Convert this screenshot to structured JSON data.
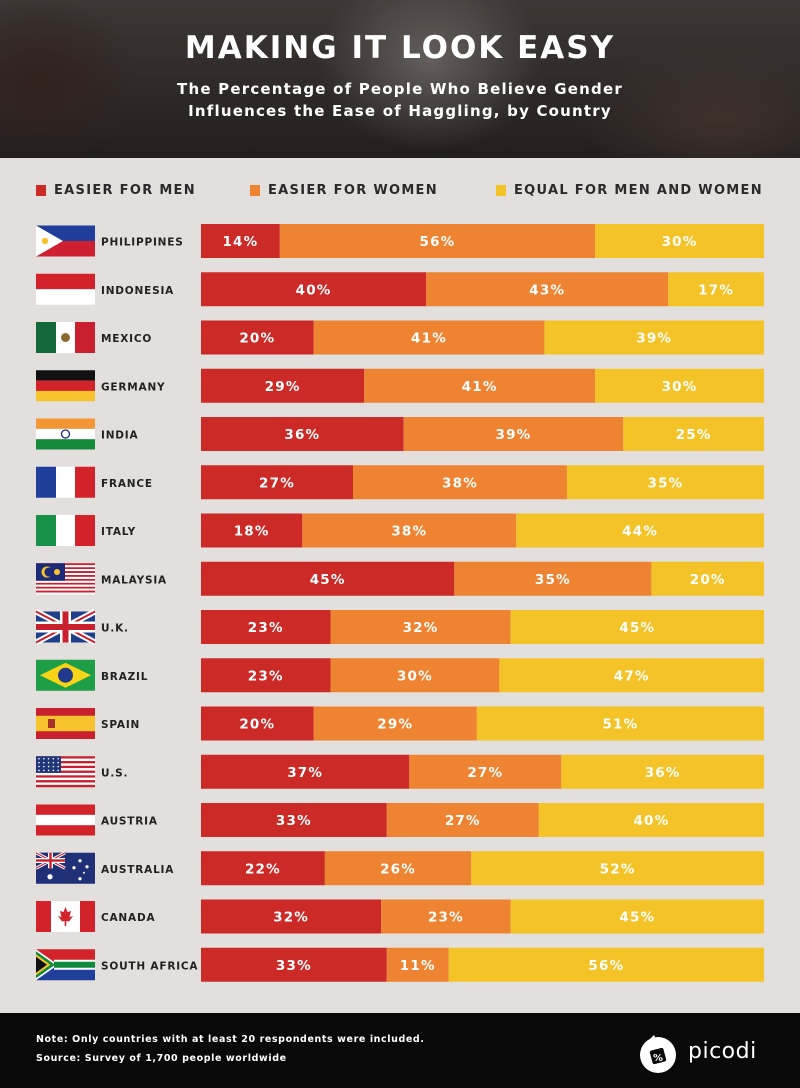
{
  "header": {
    "title": "MAKING IT LOOK EASY",
    "subtitle_line1": "The Percentage of People Who Believe Gender",
    "subtitle_line2": "Influences the Ease of Haggling, by Country"
  },
  "legend": [
    {
      "label": "EASIER FOR MEN",
      "color": "#cc2a27"
    },
    {
      "label": "EASIER FOR WOMEN",
      "color": "#ee8432"
    },
    {
      "label": "EQUAL FOR MEN AND WOMEN",
      "color": "#f3c327"
    }
  ],
  "chart_data": {
    "type": "bar",
    "orientation": "horizontal",
    "stacked": true,
    "value_suffix": "%",
    "categories": [
      "PHILIPPINES",
      "INDONESIA",
      "MEXICO",
      "GERMANY",
      "INDIA",
      "FRANCE",
      "ITALY",
      "MALAYSIA",
      "U.K.",
      "BRAZIL",
      "SPAIN",
      "U.S.",
      "AUSTRIA",
      "AUSTRALIA",
      "CANADA",
      "SOUTH AFRICA"
    ],
    "series": [
      {
        "name": "EASIER FOR MEN",
        "color": "#cc2a27",
        "values": [
          14,
          40,
          20,
          29,
          36,
          27,
          18,
          45,
          23,
          23,
          20,
          37,
          33,
          22,
          32,
          33
        ]
      },
      {
        "name": "EASIER FOR WOMEN",
        "color": "#ee8432",
        "values": [
          56,
          43,
          41,
          41,
          39,
          38,
          38,
          35,
          32,
          30,
          29,
          27,
          27,
          26,
          23,
          11
        ]
      },
      {
        "name": "EQUAL FOR MEN AND WOMEN",
        "color": "#f3c327",
        "values": [
          30,
          17,
          39,
          30,
          25,
          35,
          44,
          20,
          45,
          47,
          51,
          36,
          40,
          52,
          45,
          56
        ]
      }
    ],
    "flags": [
      "philippines-flag",
      "indonesia-flag",
      "mexico-flag",
      "germany-flag",
      "india-flag",
      "france-flag",
      "italy-flag",
      "malaysia-flag",
      "uk-flag",
      "brazil-flag",
      "spain-flag",
      "us-flag",
      "austria-flag",
      "australia-flag",
      "canada-flag",
      "south-africa-flag"
    ]
  },
  "footer": {
    "note": "Note: Only countries with at least 20 respondents were included.",
    "source": "Source: Survey of 1,700 people worldwide",
    "brand": "picodi"
  }
}
